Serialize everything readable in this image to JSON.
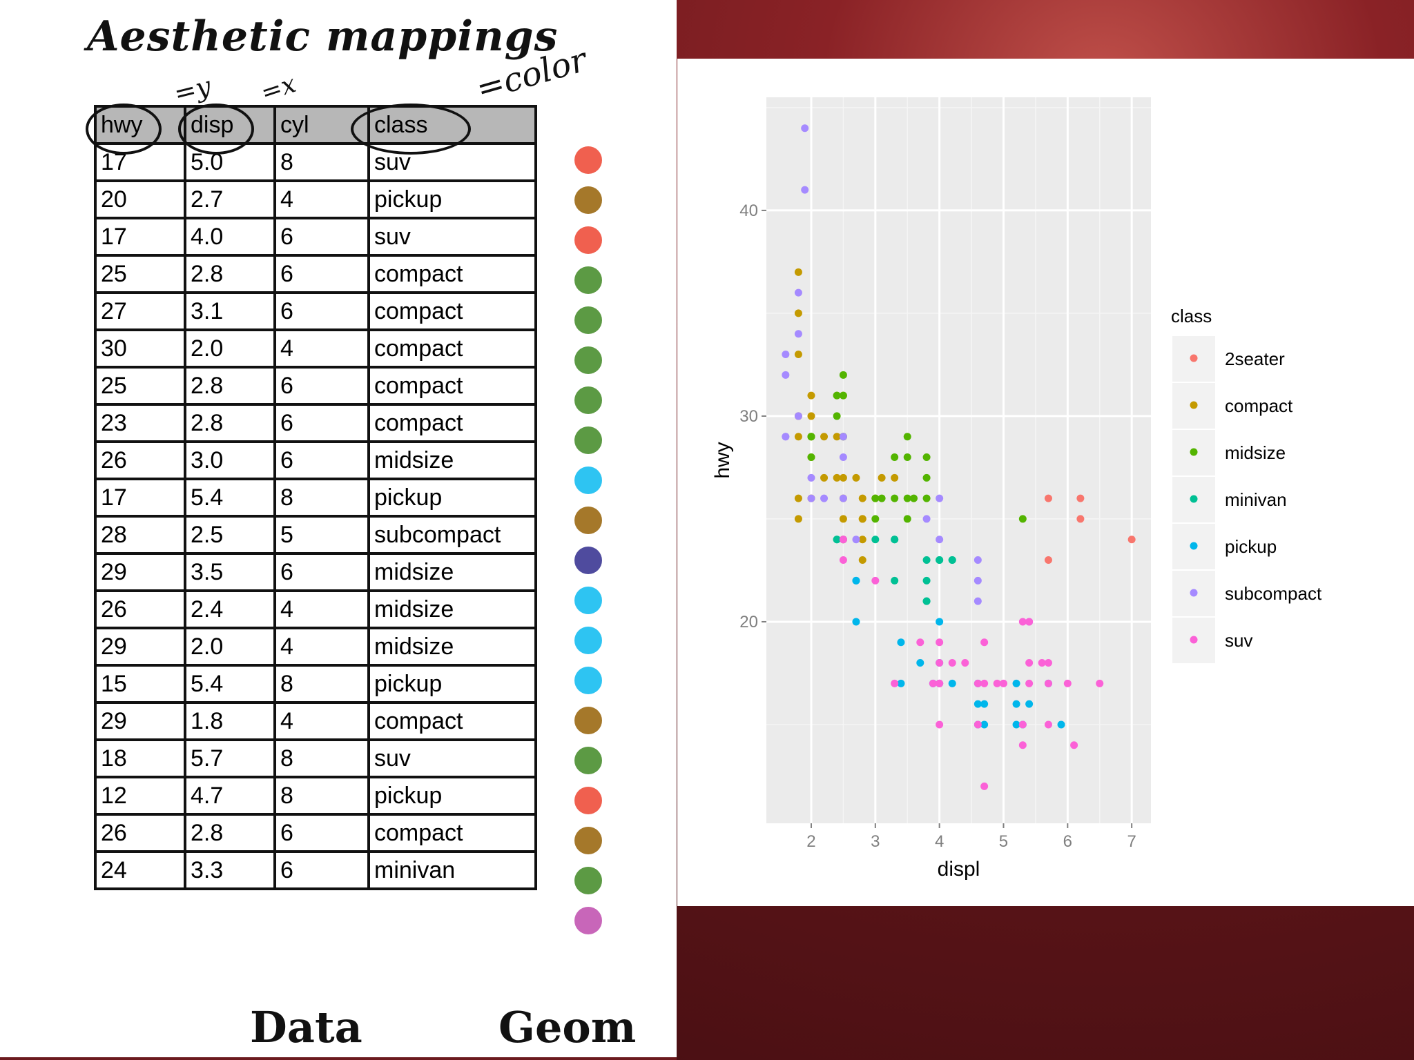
{
  "slide": {
    "title": "Aesthetic mappings",
    "notes": {
      "y": "=y",
      "x": "=x",
      "color": "=color"
    },
    "bottom_labels": {
      "data": "Data",
      "geom": "Geom"
    }
  },
  "table": {
    "headers": [
      "hwy",
      "disp",
      "cyl",
      "class"
    ],
    "rows": [
      [
        "17",
        "5.0",
        "8",
        "suv"
      ],
      [
        "20",
        "2.7",
        "4",
        "pickup"
      ],
      [
        "17",
        "4.0",
        "6",
        "suv"
      ],
      [
        "25",
        "2.8",
        "6",
        "compact"
      ],
      [
        "27",
        "3.1",
        "6",
        "compact"
      ],
      [
        "30",
        "2.0",
        "4",
        "compact"
      ],
      [
        "25",
        "2.8",
        "6",
        "compact"
      ],
      [
        "23",
        "2.8",
        "6",
        "compact"
      ],
      [
        "26",
        "3.0",
        "6",
        "midsize"
      ],
      [
        "17",
        "5.4",
        "8",
        "pickup"
      ],
      [
        "28",
        "2.5",
        "5",
        "subcompact"
      ],
      [
        "29",
        "3.5",
        "6",
        "midsize"
      ],
      [
        "26",
        "2.4",
        "4",
        "midsize"
      ],
      [
        "29",
        "2.0",
        "4",
        "midsize"
      ],
      [
        "15",
        "5.4",
        "8",
        "pickup"
      ],
      [
        "29",
        "1.8",
        "4",
        "compact"
      ],
      [
        "18",
        "5.7",
        "8",
        "suv"
      ],
      [
        "12",
        "4.7",
        "8",
        "pickup"
      ],
      [
        "26",
        "2.8",
        "6",
        "compact"
      ],
      [
        "24",
        "3.3",
        "6",
        "minivan"
      ]
    ],
    "geom_colors": [
      "#f0604f",
      "#a5782a",
      "#f0604f",
      "#5c9a44",
      "#5c9a44",
      "#5c9a44",
      "#5c9a44",
      "#5c9a44",
      "#2ec4f2",
      "#a5782a",
      "#4f4b9e",
      "#2ec4f2",
      "#2ec4f2",
      "#2ec4f2",
      "#a5782a",
      "#5c9a44",
      "#f0604f",
      "#a5782a",
      "#5c9a44",
      "#c866b9"
    ]
  },
  "chart_data": {
    "type": "scatter",
    "xlabel": "displ",
    "ylabel": "hwy",
    "xlim": [
      1.3,
      7.3
    ],
    "ylim": [
      10.2,
      45.5
    ],
    "xticks": [
      2,
      3,
      4,
      5,
      6,
      7
    ],
    "yticks": [
      20,
      30,
      40
    ],
    "grid": true,
    "legend": {
      "title": "class",
      "position": "right"
    },
    "series": [
      {
        "name": "2seater",
        "color": "#F8766D",
        "x": [
          5.7,
          5.7,
          6.2,
          6.2,
          7.0
        ],
        "y": [
          26,
          23,
          26,
          25,
          24
        ]
      },
      {
        "name": "compact",
        "color": "#C49A00",
        "x": [
          1.8,
          1.8,
          1.8,
          1.8,
          1.8,
          1.8,
          1.8,
          2.0,
          2.0,
          2.0,
          2.0,
          2.0,
          2.0,
          2.2,
          2.2,
          2.4,
          2.4,
          2.4,
          2.5,
          2.5,
          2.5,
          2.5,
          2.5,
          2.5,
          2.5,
          2.7,
          2.8,
          2.8,
          2.8,
          2.8,
          2.8,
          3.0,
          3.1,
          3.3
        ],
        "y": [
          37,
          35,
          33,
          29,
          26,
          25,
          30,
          31,
          30,
          29,
          29,
          28,
          26,
          29,
          27,
          31,
          29,
          27,
          31,
          29,
          27,
          26,
          25,
          24,
          24,
          27,
          26,
          25,
          25,
          24,
          23,
          26,
          27,
          27
        ]
      },
      {
        "name": "midsize",
        "color": "#53B400",
        "x": [
          2.0,
          2.0,
          2.0,
          2.4,
          2.4,
          2.5,
          2.5,
          2.5,
          3.0,
          3.0,
          3.1,
          3.3,
          3.3,
          3.5,
          3.5,
          3.5,
          3.5,
          3.6,
          3.8,
          3.8,
          3.8,
          5.3
        ],
        "y": [
          29,
          28,
          29,
          30,
          31,
          32,
          31,
          29,
          26,
          25,
          26,
          26,
          28,
          29,
          28,
          26,
          25,
          26,
          28,
          27,
          26,
          25
        ]
      },
      {
        "name": "minivan",
        "color": "#00C094",
        "x": [
          2.4,
          2.4,
          3.0,
          3.3,
          3.3,
          3.3,
          3.8,
          3.8,
          3.8,
          3.8,
          4.0,
          4.0,
          4.2,
          4.2
        ],
        "y": [
          24,
          24,
          24,
          24,
          24,
          22,
          23,
          22,
          21,
          21,
          23,
          23,
          23,
          23
        ]
      },
      {
        "name": "pickup",
        "color": "#00B6EB",
        "x": [
          2.7,
          2.7,
          2.7,
          3.4,
          3.4,
          3.7,
          3.9,
          4.0,
          4.0,
          4.0,
          4.2,
          4.6,
          4.6,
          4.6,
          4.7,
          4.7,
          5.2,
          5.2,
          5.2,
          5.3,
          5.4,
          5.7,
          5.9
        ],
        "y": [
          20,
          22,
          22,
          19,
          17,
          18,
          17,
          20,
          18,
          17,
          17,
          16,
          17,
          15,
          16,
          15,
          17,
          16,
          15,
          15,
          16,
          17,
          15
        ]
      },
      {
        "name": "subcompact",
        "color": "#A58AFF",
        "x": [
          1.6,
          1.6,
          1.6,
          1.6,
          1.8,
          1.8,
          1.8,
          1.9,
          1.9,
          2.0,
          2.0,
          2.2,
          2.5,
          2.5,
          2.5,
          2.5,
          2.7,
          3.8,
          4.0,
          4.0,
          4.6,
          4.6,
          4.6,
          5.4
        ],
        "y": [
          33,
          32,
          29,
          29,
          36,
          34,
          30,
          44,
          41,
          27,
          26,
          26,
          29,
          28,
          26,
          24,
          24,
          25,
          26,
          24,
          23,
          22,
          21,
          20
        ]
      },
      {
        "name": "suv",
        "color": "#FB61D7",
        "x": [
          2.5,
          2.5,
          3.0,
          3.3,
          3.7,
          3.9,
          4.0,
          4.0,
          4.0,
          4.0,
          4.0,
          4.2,
          4.4,
          4.6,
          4.6,
          4.7,
          4.7,
          4.7,
          4.9,
          5.0,
          5.3,
          5.3,
          5.3,
          5.4,
          5.4,
          5.4,
          5.6,
          5.7,
          5.7,
          5.7,
          6.0,
          6.1,
          6.5
        ],
        "y": [
          24,
          23,
          22,
          17,
          19,
          17,
          19,
          18,
          17,
          17,
          15,
          18,
          18,
          17,
          15,
          19,
          17,
          12,
          17,
          17,
          20,
          15,
          14,
          20,
          18,
          17,
          18,
          18,
          17,
          15,
          17,
          14,
          17
        ]
      }
    ]
  }
}
